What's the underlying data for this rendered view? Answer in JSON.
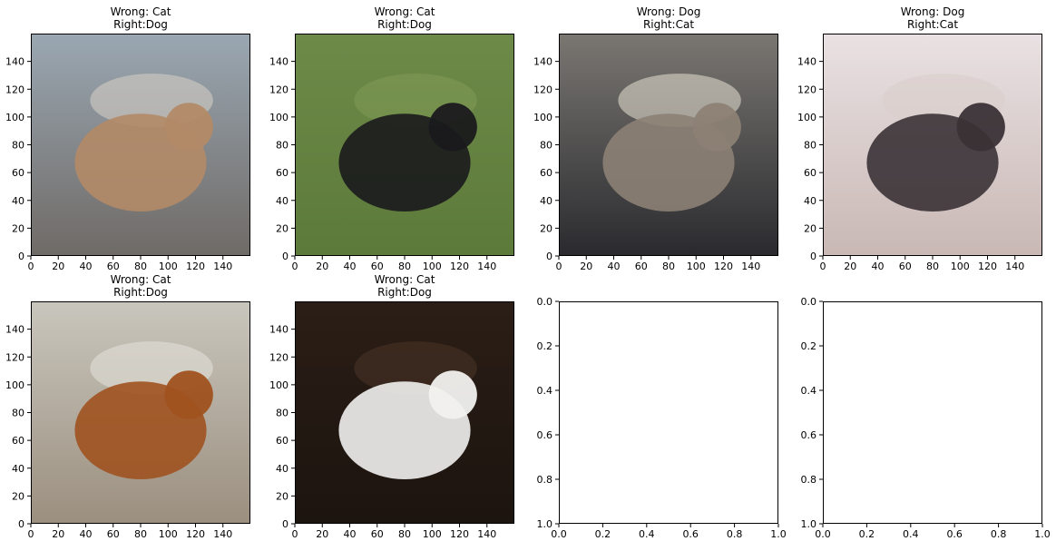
{
  "chart_data": [
    {
      "type": "image",
      "title_line1": "Wrong: Cat",
      "title_line2": "Right:Dog",
      "xlim": [
        0,
        160
      ],
      "ylim": [
        160,
        0
      ],
      "xticks": [
        0,
        20,
        40,
        60,
        80,
        100,
        120,
        140
      ],
      "yticks": [
        0,
        20,
        40,
        60,
        80,
        100,
        120,
        140
      ],
      "palette": {
        "top": "#9aa7b2",
        "bottom": "#6f6a66",
        "accent": "#d9d2c8",
        "subject": "#b38a67"
      }
    },
    {
      "type": "image",
      "title_line1": "Wrong: Cat",
      "title_line2": "Right:Dog",
      "xlim": [
        0,
        160
      ],
      "ylim": [
        160,
        0
      ],
      "xticks": [
        0,
        20,
        40,
        60,
        80,
        100,
        120,
        140
      ],
      "yticks": [
        0,
        20,
        40,
        60,
        80,
        100,
        120,
        140
      ],
      "palette": {
        "top": "#6e8a49",
        "bottom": "#5c7a3a",
        "accent": "#7f9b56",
        "subject": "#1a1a1c"
      }
    },
    {
      "type": "image",
      "title_line1": "Wrong: Dog",
      "title_line2": "Right:Cat",
      "xlim": [
        0,
        160
      ],
      "ylim": [
        160,
        0
      ],
      "xticks": [
        0,
        20,
        40,
        60,
        80,
        100,
        120,
        140
      ],
      "yticks": [
        0,
        20,
        40,
        60,
        80,
        100,
        120,
        140
      ],
      "palette": {
        "top": "#7a7772",
        "bottom": "#2a2a2e",
        "accent": "#e8e1d3",
        "subject": "#8c8174"
      }
    },
    {
      "type": "image",
      "title_line1": "Wrong: Dog",
      "title_line2": "Right:Cat",
      "xlim": [
        0,
        160
      ],
      "ylim": [
        160,
        0
      ],
      "xticks": [
        0,
        20,
        40,
        60,
        80,
        100,
        120,
        140
      ],
      "yticks": [
        0,
        20,
        40,
        60,
        80,
        100,
        120,
        140
      ],
      "palette": {
        "top": "#e9e1e3",
        "bottom": "#c9b8b4",
        "accent": "#d8cdcb",
        "subject": "#3a3236"
      }
    },
    {
      "type": "image",
      "title_line1": "Wrong: Cat",
      "title_line2": "Right:Dog",
      "xlim": [
        0,
        160
      ],
      "ylim": [
        160,
        0
      ],
      "xticks": [
        0,
        20,
        40,
        60,
        80,
        100,
        120,
        140
      ],
      "yticks": [
        0,
        20,
        40,
        60,
        80,
        100,
        120,
        140
      ],
      "palette": {
        "top": "#c9c6bd",
        "bottom": "#9b8f7f",
        "accent": "#e6e3dc",
        "subject": "#a0521f"
      }
    },
    {
      "type": "image",
      "title_line1": "Wrong: Cat",
      "title_line2": "Right:Dog",
      "xlim": [
        0,
        160
      ],
      "ylim": [
        160,
        0
      ],
      "xticks": [
        0,
        20,
        40,
        60,
        80,
        100,
        120,
        140
      ],
      "yticks": [
        0,
        20,
        40,
        60,
        80,
        100,
        120,
        140
      ],
      "palette": {
        "top": "#2b1e16",
        "bottom": "#1c140f",
        "accent": "#4a3526",
        "subject": "#f1f1ef"
      }
    },
    {
      "type": "empty",
      "title_line1": "",
      "title_line2": "",
      "xlim": [
        0,
        1
      ],
      "ylim": [
        0,
        1
      ],
      "xticks": [
        "0.0",
        "0.2",
        "0.4",
        "0.6",
        "0.8",
        "1.0"
      ],
      "yticks": [
        "0.0",
        "0.2",
        "0.4",
        "0.6",
        "0.8",
        "1.0"
      ]
    },
    {
      "type": "empty",
      "title_line1": "",
      "title_line2": "",
      "xlim": [
        0,
        1
      ],
      "ylim": [
        0,
        1
      ],
      "xticks": [
        "0.0",
        "0.2",
        "0.4",
        "0.6",
        "0.8",
        "1.0"
      ],
      "yticks": [
        "0.0",
        "0.2",
        "0.4",
        "0.6",
        "0.8",
        "1.0"
      ]
    }
  ]
}
